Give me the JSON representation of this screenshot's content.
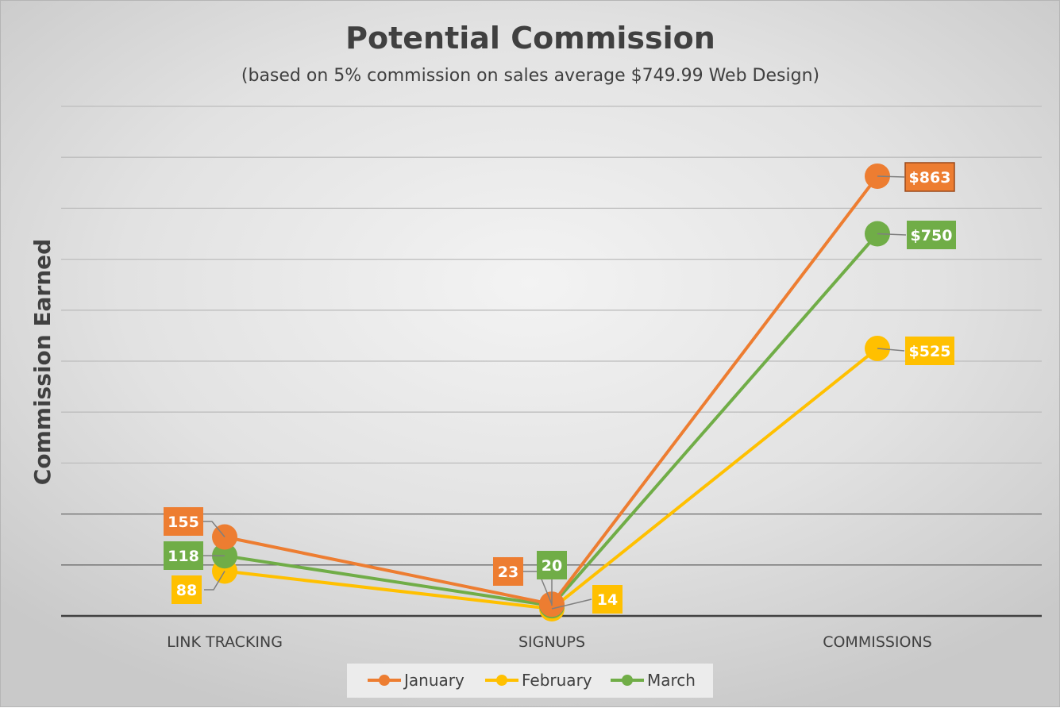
{
  "chart_data": {
    "type": "line",
    "title": "Potential Commission",
    "subtitle": "(based on 5% commission on sales average $749.99 Web Design)",
    "ylabel": "Commission Earned",
    "xlabel": "",
    "categories": [
      "LINK TRACKING",
      "SIGNUPS",
      "COMMISSIONS"
    ],
    "series": [
      {
        "name": "January",
        "color": "#ED7D31",
        "values": [
          155,
          23,
          863
        ],
        "labels": [
          "155",
          "23",
          "$863"
        ]
      },
      {
        "name": "February",
        "color": "#FFC000",
        "values": [
          88,
          14,
          525
        ],
        "labels": [
          "88",
          "14",
          "$525"
        ]
      },
      {
        "name": "March",
        "color": "#70AD47",
        "values": [
          118,
          20,
          750
        ],
        "labels": [
          "118",
          "20",
          "$750"
        ]
      }
    ],
    "ylim": [
      0,
      1000
    ],
    "grid": true,
    "legend": "bottom"
  }
}
